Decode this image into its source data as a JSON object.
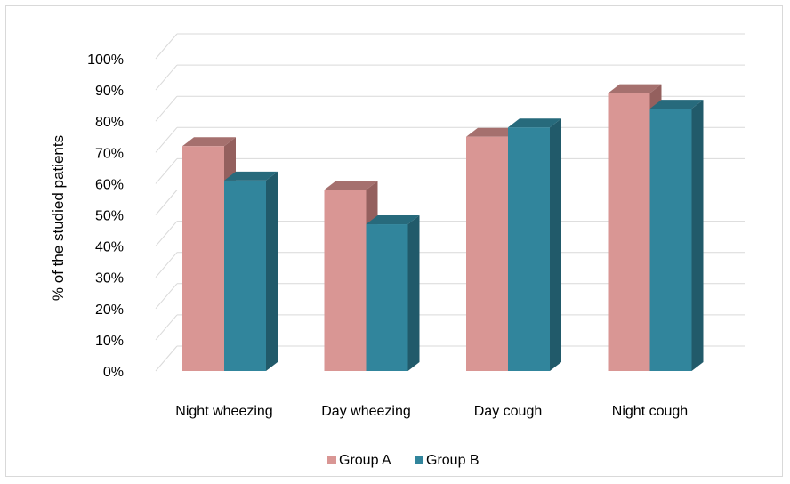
{
  "chart_data": {
    "type": "bar",
    "three_d": true,
    "categories": [
      "Night wheezing",
      "Day wheezing",
      "Day cough",
      "Night cough"
    ],
    "series": [
      {
        "name": "Group A",
        "values": [
          72,
          58,
          75,
          89
        ],
        "color": "#d99694",
        "top_color": "#a5706e",
        "side_color": "#94605e"
      },
      {
        "name": "Group B",
        "values": [
          61,
          47,
          78,
          84
        ],
        "color": "#31859c",
        "top_color": "#276a7c",
        "side_color": "#215a6a"
      }
    ],
    "ylabel": "% of the studied patients",
    "xlabel": "",
    "title": "",
    "ylim": [
      0,
      100
    ],
    "ytick_labels": [
      "0%",
      "10%",
      "20%",
      "30%",
      "40%",
      "50%",
      "60%",
      "70%",
      "80%",
      "90%",
      "100%"
    ],
    "grid": true,
    "legend_position": "bottom"
  }
}
